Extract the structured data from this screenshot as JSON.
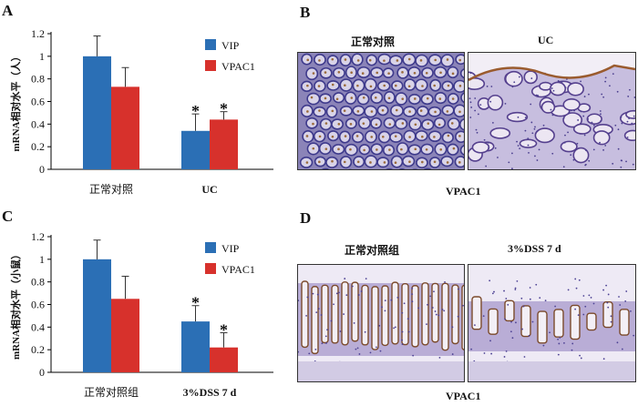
{
  "panels": {
    "a": "A",
    "b": "B",
    "c": "C",
    "d": "D"
  },
  "histology": {
    "b_left_title": "正常对照",
    "b_right_title": "UC",
    "b_caption": "VPAC1",
    "d_left_title": "正常对照组",
    "d_right_title": "3%DSS 7 d",
    "d_caption": "VPAC1"
  },
  "colors": {
    "vip": "#2b6fb5",
    "vpac1": "#d7312c"
  },
  "chart_data": [
    {
      "type": "bar",
      "panel": "A",
      "categories": [
        "正常对照",
        "UC"
      ],
      "series": [
        {
          "name": "VIP",
          "values": [
            1.0,
            0.34
          ],
          "errors": [
            0.18,
            0.15
          ]
        },
        {
          "name": "VPAC1",
          "values": [
            0.73,
            0.44
          ],
          "errors": [
            0.17,
            0.07
          ]
        }
      ],
      "significance": [
        [
          "",
          ""
        ],
        [
          "*",
          "*"
        ]
      ],
      "ylabel": "mRNA相对水平（人）",
      "ylim": [
        0,
        1.2
      ],
      "yticks": [
        "0",
        "0.2",
        "0.4",
        "0.6",
        "0.8",
        "1",
        "1.2"
      ],
      "legend": "top-right"
    },
    {
      "type": "bar",
      "panel": "C",
      "categories": [
        "正常对照组",
        "3%DSS 7 d"
      ],
      "series": [
        {
          "name": "VIP",
          "values": [
            1.0,
            0.45
          ],
          "errors": [
            0.17,
            0.14
          ]
        },
        {
          "name": "VPAC1",
          "values": [
            0.65,
            0.22
          ],
          "errors": [
            0.2,
            0.13
          ]
        }
      ],
      "significance": [
        [
          "",
          ""
        ],
        [
          "*",
          "*"
        ]
      ],
      "ylabel": "mRNA相对水平（小鼠）",
      "ylim": [
        0,
        1.2
      ],
      "yticks": [
        "0",
        "0.2",
        "0.4",
        "0.6",
        "0.8",
        "1",
        "1.2"
      ],
      "legend": "top-right"
    }
  ]
}
